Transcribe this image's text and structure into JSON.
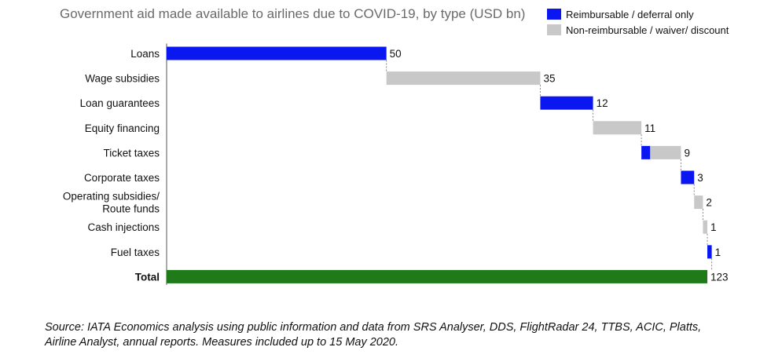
{
  "title": "Government aid made available to airlines due to COVID-19, by type (USD bn)",
  "legend": [
    {
      "label": "Reimbursable / deferral only",
      "color": "#0a17f0"
    },
    {
      "label": "Non-reimbursable / waiver/ discount",
      "color": "#c8c8c8"
    }
  ],
  "colors": {
    "total": "#1f7a1a"
  },
  "source_lines": [
    "Source: IATA Economics analysis using public information and data from SRS Analyser, DDS, FlightRadar 24, TTBS, ACIC, Platts,",
    "Airline Analyst, annual reports. Measures included up to 15 May 2020."
  ],
  "chart_data": {
    "type": "waterfall",
    "title": "Government aid made available to airlines due to COVID-19, by type (USD bn)",
    "categories": [
      [
        "Loans"
      ],
      [
        "Wage subsidies"
      ],
      [
        "Loan guarantees"
      ],
      [
        "Equity financing"
      ],
      [
        "Ticket taxes"
      ],
      [
        "Corporate taxes"
      ],
      [
        "Operating subsidies/",
        "Route funds"
      ],
      [
        "Cash injections"
      ],
      [
        "Fuel taxes"
      ],
      [
        "Total"
      ]
    ],
    "values": [
      50,
      35,
      12,
      11,
      9,
      3,
      2,
      1,
      1,
      123
    ],
    "series": [
      {
        "name": "Reimbursable / deferral only",
        "values": [
          50,
          0,
          12,
          0,
          2,
          3,
          0,
          0,
          1,
          null
        ]
      },
      {
        "name": "Non-reimbursable / waiver/ discount",
        "values": [
          0,
          35,
          0,
          11,
          7,
          0,
          2,
          1,
          0,
          null
        ]
      }
    ],
    "total": 123,
    "xlim": [
      0,
      123
    ]
  }
}
